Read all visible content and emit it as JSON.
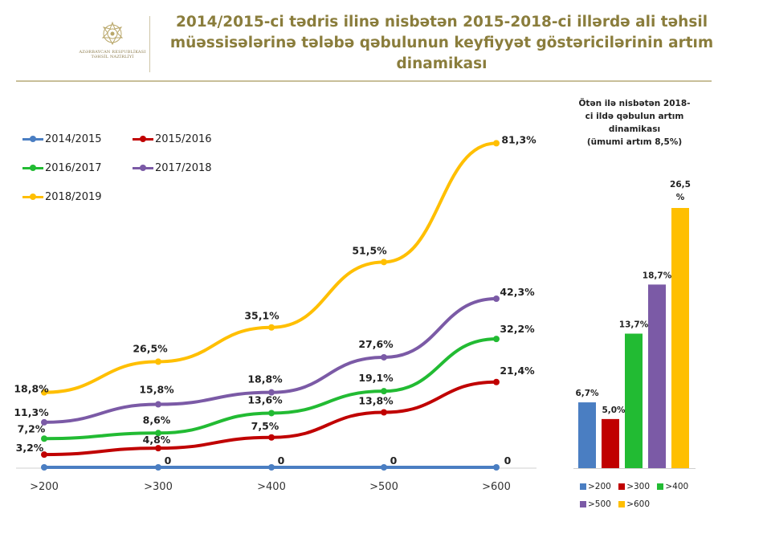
{
  "header": {
    "logo_caption": "AZƏRBAYCAN RESPUBLİKASI TƏHSİL NAZİRLİYİ",
    "title_lines": [
      "2014/2015-ci tədris ilinə nisbətən 2015-2018-ci illərdə ali təhsil",
      "müəssisələrinə tələbə qəbulunun keyfiyyət göstəricilərinin artım",
      "dinamikası"
    ]
  },
  "chart_data": [
    {
      "type": "line",
      "categories": [
        ">200",
        ">300",
        ">400",
        ">500",
        ">600"
      ],
      "ylim": [
        0,
        85
      ],
      "legend_position": "top-left",
      "grid": false,
      "series": [
        {
          "name": "2014/2015",
          "color": "#4a7ec2",
          "values": [
            0,
            0,
            0,
            0,
            0
          ],
          "labels": [
            "",
            "0",
            "0",
            "0",
            "0"
          ]
        },
        {
          "name": "2015/2016",
          "color": "#c00000",
          "values": [
            3.2,
            4.8,
            7.5,
            13.8,
            21.4
          ],
          "labels": [
            "3,2%",
            "4,8%",
            "7,5%",
            "13,8%",
            "21,4%"
          ]
        },
        {
          "name": "2016/2017",
          "color": "#22bb33",
          "values": [
            7.2,
            8.6,
            13.6,
            19.1,
            32.2
          ],
          "labels": [
            "7,2%",
            "8,6%",
            "13,6%",
            "19,1%",
            "32,2%"
          ]
        },
        {
          "name": "2017/2018",
          "color": "#7b5aa6",
          "values": [
            11.3,
            15.8,
            18.8,
            27.6,
            42.3
          ],
          "labels": [
            "11,3%",
            "15,8%",
            "18,8%",
            "27,6%",
            "42,3%"
          ]
        },
        {
          "name": "2018/2019",
          "color": "#ffbf00",
          "values": [
            18.8,
            26.5,
            35.1,
            51.5,
            81.3
          ],
          "labels": [
            "18,8%",
            "26,5%",
            "35,1%",
            "51,5%",
            "81,3%"
          ]
        }
      ]
    },
    {
      "type": "bar",
      "title_lines": [
        "Ötən ilə nisbətən 2018-",
        "ci ildə qəbulun artım",
        "dinamikası",
        "(ümumi artım 8,5%)"
      ],
      "categories": [
        ">200",
        ">300",
        ">400",
        ">500",
        ">600"
      ],
      "values": [
        6.7,
        5.0,
        13.7,
        18.7,
        26.5
      ],
      "labels": [
        "6,7%",
        "5,0%",
        "13,7%",
        "18,7%",
        "26,5 %"
      ],
      "colors": [
        "#4a7ec2",
        "#c00000",
        "#22bb33",
        "#7b5aa6",
        "#ffbf00"
      ],
      "ylim": [
        0,
        26.5
      ],
      "legend_position": "bottom"
    }
  ]
}
